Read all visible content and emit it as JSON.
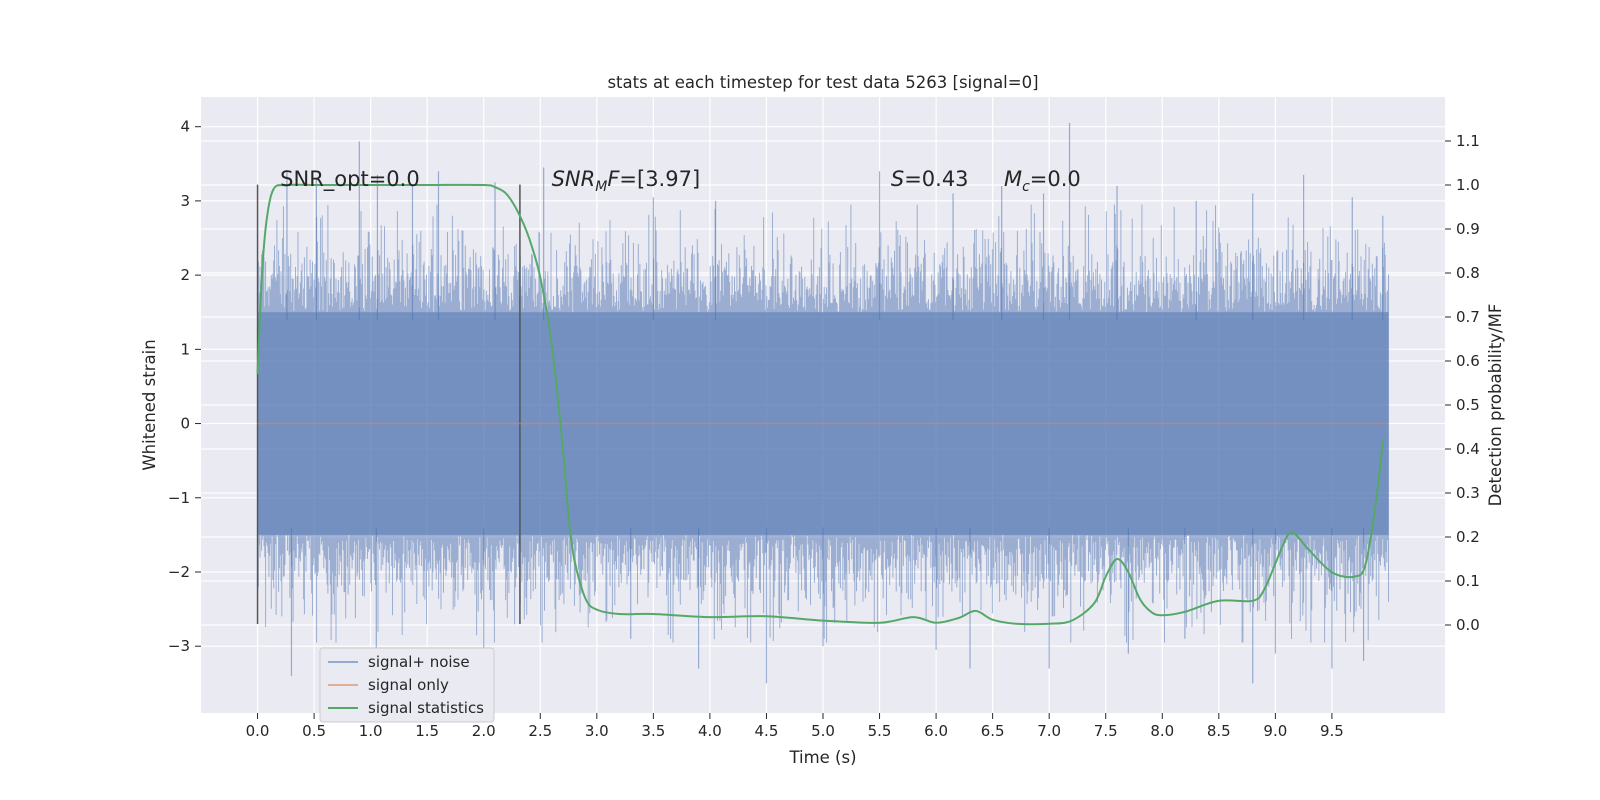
{
  "chart_data": {
    "type": "line",
    "title": "stats at each timestep for test data 5263 [signal=0]",
    "xlabel": "Time (s)",
    "ylabel": "Whitened strain",
    "y2label": "Detection probability/MF",
    "xlim": [
      -0.5,
      10.5
    ],
    "ylim": [
      -3.9,
      4.4
    ],
    "y2lim": [
      -0.2,
      1.2
    ],
    "xticks": [
      0.0,
      0.5,
      1.0,
      1.5,
      2.0,
      2.5,
      3.0,
      3.5,
      4.0,
      4.5,
      5.0,
      5.5,
      6.0,
      6.5,
      7.0,
      7.5,
      8.0,
      8.5,
      9.0,
      9.5
    ],
    "xtick_labels": [
      "0.0",
      "0.5",
      "1.0",
      "1.5",
      "2.0",
      "2.5",
      "3.0",
      "3.5",
      "4.0",
      "4.5",
      "5.0",
      "5.5",
      "6.0",
      "6.5",
      "7.0",
      "7.5",
      "8.0",
      "8.5",
      "9.0",
      "9.5"
    ],
    "yticks": [
      -3,
      -2,
      -1,
      0,
      1,
      2,
      3,
      4
    ],
    "ytick_labels": [
      "−3",
      "−2",
      "−1",
      "0",
      "1",
      "2",
      "3",
      "4"
    ],
    "y2ticks": [
      0.0,
      0.1,
      0.2,
      0.3,
      0.4,
      0.5,
      0.6,
      0.7,
      0.8,
      0.9,
      1.0,
      1.1
    ],
    "y2tick_labels": [
      "0.0",
      "0.1",
      "0.2",
      "0.3",
      "0.4",
      "0.5",
      "0.6",
      "0.7",
      "0.8",
      "0.9",
      "1.0",
      "1.1"
    ],
    "grid": true,
    "legend_position": "lower-left",
    "annotations": [
      {
        "label": "SNR_opt=0.0",
        "x": 0.2,
        "y": 3.2
      },
      {
        "label": "SNR_MF=[3.97]",
        "x": 2.6,
        "y": 3.2
      },
      {
        "label": "S=0.43",
        "x": 5.6,
        "y": 3.2
      },
      {
        "label": "M_c=0.0",
        "x": 6.6,
        "y": 3.2
      }
    ],
    "vertical_markers": [
      {
        "x": 0.0,
        "ymin": -2.7,
        "ymax": 3.22
      },
      {
        "x": 2.32,
        "ymin": -2.7,
        "ymax": 3.22
      }
    ],
    "series": [
      {
        "name": "signal+ noise",
        "axis": "left",
        "color": "#4c72b0",
        "opacity": 0.5,
        "x_range": [
          0.0,
          10.0
        ],
        "band_typical": [
          -1.5,
          1.5
        ],
        "range_observed": [
          -3.5,
          4.05
        ],
        "spikes_high": [
          [
            0.26,
            3.4
          ],
          [
            0.52,
            3.3
          ],
          [
            0.9,
            3.8
          ],
          [
            1.06,
            3.35
          ],
          [
            1.37,
            3.2
          ],
          [
            1.6,
            3.4
          ],
          [
            2.1,
            3.25
          ],
          [
            2.53,
            3.45
          ],
          [
            3.5,
            3.05
          ],
          [
            4.05,
            3.0
          ],
          [
            5.5,
            3.4
          ],
          [
            6.15,
            3.1
          ],
          [
            6.58,
            3.2
          ],
          [
            6.95,
            3.1
          ],
          [
            7.18,
            4.05
          ],
          [
            7.6,
            3.2
          ],
          [
            8.3,
            3.0
          ],
          [
            8.8,
            3.1
          ],
          [
            9.25,
            3.35
          ],
          [
            9.68,
            3.05
          ],
          [
            9.95,
            2.8
          ]
        ],
        "spikes_low": [
          [
            0.3,
            -3.4
          ],
          [
            1.05,
            -3.2
          ],
          [
            2.0,
            -3.1
          ],
          [
            3.3,
            -2.9
          ],
          [
            3.9,
            -3.3
          ],
          [
            4.5,
            -3.5
          ],
          [
            5.0,
            -3.0
          ],
          [
            6.0,
            -3.05
          ],
          [
            6.3,
            -3.3
          ],
          [
            7.0,
            -3.3
          ],
          [
            7.7,
            -3.1
          ],
          [
            8.2,
            -2.9
          ],
          [
            8.8,
            -3.5
          ],
          [
            9.0,
            -3.1
          ],
          [
            9.5,
            -3.3
          ],
          [
            9.78,
            -3.2
          ]
        ]
      },
      {
        "name": "signal only",
        "axis": "left",
        "color": "#dd8452",
        "x": [
          0.0,
          10.0
        ],
        "y": [
          0.0,
          0.0
        ]
      },
      {
        "name": "signal statistics",
        "axis": "right",
        "color": "#55a868",
        "x": [
          0.0,
          0.04,
          0.08,
          0.14,
          0.25,
          0.5,
          1.0,
          1.5,
          2.0,
          2.1,
          2.2,
          2.3,
          2.4,
          2.5,
          2.6,
          2.7,
          2.75,
          2.8,
          2.9,
          3.0,
          3.2,
          3.5,
          4.0,
          4.5,
          5.0,
          5.5,
          5.8,
          6.0,
          6.2,
          6.35,
          6.5,
          6.7,
          7.0,
          7.2,
          7.4,
          7.5,
          7.6,
          7.7,
          7.8,
          7.9,
          8.0,
          8.2,
          8.5,
          8.8,
          8.9,
          9.0,
          9.1,
          9.15,
          9.2,
          9.3,
          9.5,
          9.7,
          9.8,
          9.9,
          9.95
        ],
        "y": [
          0.57,
          0.8,
          0.92,
          0.99,
          1.0,
          1.0,
          1.0,
          1.0,
          1.0,
          0.995,
          0.98,
          0.94,
          0.88,
          0.79,
          0.64,
          0.4,
          0.25,
          0.15,
          0.06,
          0.035,
          0.025,
          0.025,
          0.018,
          0.02,
          0.01,
          0.005,
          0.018,
          0.005,
          0.016,
          0.032,
          0.012,
          0.003,
          0.003,
          0.01,
          0.05,
          0.11,
          0.15,
          0.12,
          0.06,
          0.03,
          0.022,
          0.03,
          0.055,
          0.055,
          0.08,
          0.14,
          0.2,
          0.21,
          0.2,
          0.17,
          0.12,
          0.11,
          0.14,
          0.3,
          0.42
        ]
      }
    ]
  }
}
